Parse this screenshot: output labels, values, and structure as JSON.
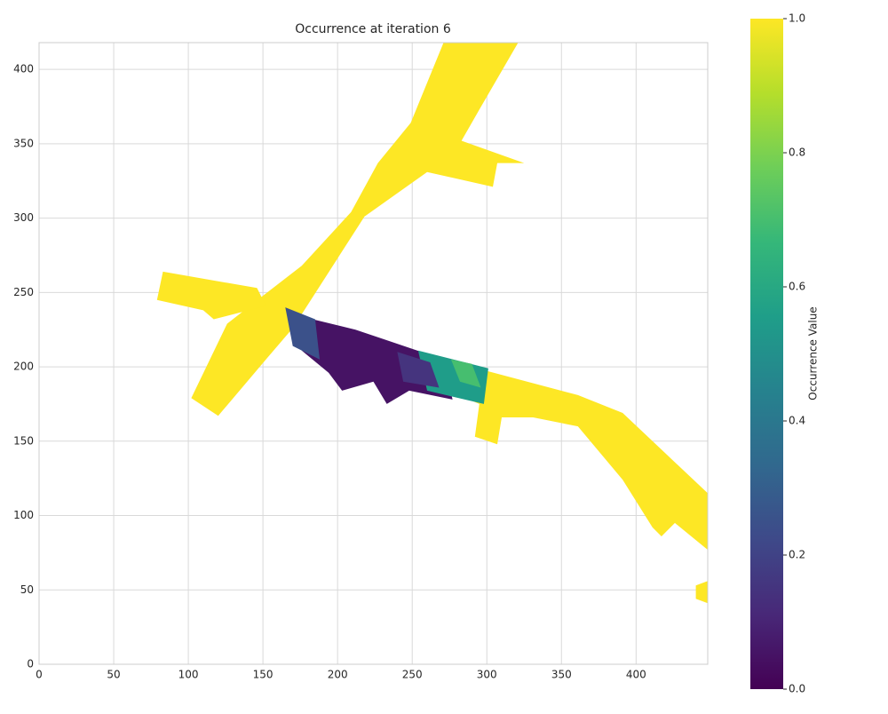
{
  "chart_data": {
    "type": "heatmap",
    "title": "Occurrence at iteration 6",
    "colorbar_label": "Occurrence Value",
    "cmap": "viridis",
    "grid": true,
    "xlim": [
      0,
      448
    ],
    "ylim": [
      0,
      418
    ],
    "xticks": [
      0,
      50,
      100,
      150,
      200,
      250,
      300,
      350,
      400
    ],
    "yticks": [
      0,
      50,
      100,
      150,
      200,
      250,
      300,
      350,
      400
    ],
    "clim": [
      0,
      1
    ],
    "cticks": [
      {
        "value": 0,
        "label": "0.0"
      },
      0.2,
      0.4,
      0.6,
      0.8,
      {
        "value": 1,
        "label": "1.0"
      }
    ],
    "regions": [
      {
        "value": 1,
        "points": [
          [
            102,
            179
          ],
          [
            120,
            167
          ],
          [
            152,
            205
          ],
          [
            170,
            226
          ],
          [
            218,
            301
          ],
          [
            260,
            331
          ],
          [
            304,
            321
          ],
          [
            307,
            337
          ],
          [
            325,
            337
          ],
          [
            283,
            352
          ],
          [
            295,
            373
          ],
          [
            321,
            418
          ],
          [
            271,
            418
          ],
          [
            249,
            364
          ],
          [
            227,
            337
          ],
          [
            209,
            304
          ],
          [
            176,
            268
          ],
          [
            149,
            247
          ],
          [
            126,
            229
          ]
        ]
      },
      {
        "value": 1,
        "points": [
          [
            83,
            264
          ],
          [
            146,
            253
          ],
          [
            152,
            241
          ],
          [
            117,
            232
          ],
          [
            110,
            238
          ],
          [
            79,
            245
          ]
        ]
      },
      {
        "value": 1,
        "points": [
          [
            271,
            205
          ],
          [
            361,
            181
          ],
          [
            391,
            169
          ],
          [
            448,
            115
          ],
          [
            448,
            77
          ],
          [
            426,
            95
          ],
          [
            417,
            86
          ],
          [
            411,
            92
          ],
          [
            391,
            124
          ],
          [
            361,
            160
          ],
          [
            331,
            166
          ],
          [
            310,
            166
          ],
          [
            307,
            148
          ],
          [
            292,
            153
          ],
          [
            295,
            175
          ],
          [
            274,
            184
          ]
        ]
      },
      {
        "value": 1,
        "points": [
          [
            440,
            53
          ],
          [
            448,
            56
          ],
          [
            448,
            41
          ],
          [
            440,
            44
          ]
        ]
      },
      {
        "value": 0.05,
        "points": [
          [
            179,
            233
          ],
          [
            212,
            225
          ],
          [
            271,
            205
          ],
          [
            277,
            178
          ],
          [
            248,
            184
          ],
          [
            233,
            175
          ],
          [
            224,
            190
          ],
          [
            203,
            184
          ],
          [
            194,
            196
          ],
          [
            176,
            211
          ]
        ]
      },
      {
        "value": 0.25,
        "points": [
          [
            165,
            240
          ],
          [
            185,
            232
          ],
          [
            188,
            205
          ],
          [
            170,
            214
          ]
        ]
      },
      {
        "value": 0.55,
        "points": [
          [
            254,
            211
          ],
          [
            301,
            199
          ],
          [
            298,
            175
          ],
          [
            260,
            184
          ]
        ]
      },
      {
        "value": 0.15,
        "points": [
          [
            240,
            210
          ],
          [
            262,
            203
          ],
          [
            268,
            186
          ],
          [
            244,
            190
          ]
        ]
      },
      {
        "value": 0.7,
        "points": [
          [
            276,
            205
          ],
          [
            290,
            202
          ],
          [
            296,
            186
          ],
          [
            282,
            190
          ]
        ]
      }
    ]
  }
}
